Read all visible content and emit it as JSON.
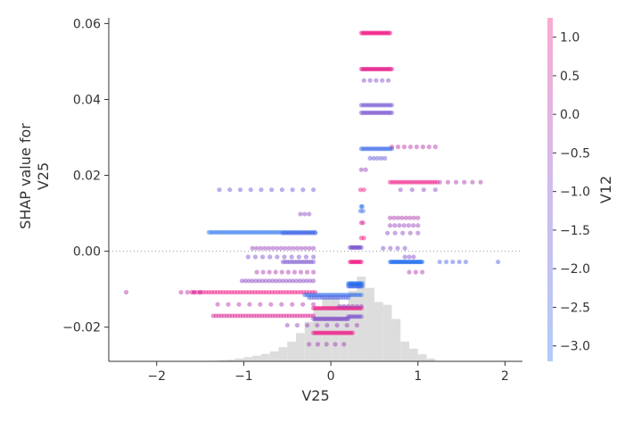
{
  "chart_data": {
    "type": "scatter",
    "title": "",
    "xlabel": "V25",
    "ylabel_lines": [
      "SHAP value for",
      "V25"
    ],
    "xlim": [
      -2.55,
      2.2
    ],
    "ylim": [
      -0.029,
      0.0615
    ],
    "x_ticks": [
      {
        "value": -2,
        "label": "−2"
      },
      {
        "value": -1,
        "label": "−1"
      },
      {
        "value": 0,
        "label": "0"
      },
      {
        "value": 1,
        "label": "1"
      },
      {
        "value": 2,
        "label": "2"
      }
    ],
    "y_ticks": [
      {
        "value": 0.06,
        "label": "0.06"
      },
      {
        "value": 0.04,
        "label": "0.04"
      },
      {
        "value": 0.02,
        "label": "0.02"
      },
      {
        "value": 0.0,
        "label": "0.00"
      },
      {
        "value": -0.02,
        "label": "−0.02"
      }
    ],
    "zero_line": 0.0,
    "histogram": {
      "bin_width": 0.1,
      "bins": [
        [
          -1.4,
          0.004
        ],
        [
          -1.3,
          0.007
        ],
        [
          -1.2,
          0.012
        ],
        [
          -1.1,
          0.02
        ],
        [
          -1.0,
          0.03
        ],
        [
          -0.9,
          0.04
        ],
        [
          -0.8,
          0.052
        ],
        [
          -0.7,
          0.07
        ],
        [
          -0.6,
          0.1
        ],
        [
          -0.5,
          0.14
        ],
        [
          -0.4,
          0.2
        ],
        [
          -0.3,
          0.28
        ],
        [
          -0.2,
          0.38
        ],
        [
          -0.1,
          0.45
        ],
        [
          0.0,
          0.45
        ],
        [
          0.1,
          0.4
        ],
        [
          0.2,
          0.5
        ],
        [
          0.3,
          0.6
        ],
        [
          0.4,
          0.52
        ],
        [
          0.5,
          0.42
        ],
        [
          0.6,
          0.4
        ],
        [
          0.7,
          0.3
        ],
        [
          0.8,
          0.14
        ],
        [
          0.9,
          0.09
        ],
        [
          1.0,
          0.05
        ],
        [
          1.1,
          0.02
        ]
      ]
    },
    "colorbar": {
      "label": "V12",
      "range": [
        -3.2,
        1.25
      ],
      "ticks": [
        {
          "value": 1.0,
          "label": "1.0"
        },
        {
          "value": 0.5,
          "label": "0.5"
        },
        {
          "value": 0.0,
          "label": "0.0"
        },
        {
          "value": -0.5,
          "label": "−0.5"
        },
        {
          "value": -1.0,
          "label": "−1.0"
        },
        {
          "value": -1.5,
          "label": "−1.5"
        },
        {
          "value": -2.0,
          "label": "−2.0"
        },
        {
          "value": -2.5,
          "label": "−2.5"
        },
        {
          "value": -3.0,
          "label": "−3.0"
        }
      ],
      "colors": [
        "#1f6cee",
        "#7b42c8",
        "#f00d7e"
      ]
    },
    "point_groups": [
      {
        "y": 0.0575,
        "x_start": 0.35,
        "x_end": 0.68,
        "n": 22,
        "color": 1.0
      },
      {
        "y": 0.048,
        "x_start": 0.35,
        "x_end": 0.7,
        "n": 24,
        "color": 0.95
      },
      {
        "y": 0.045,
        "x_start": 0.38,
        "x_end": 0.66,
        "n": 5,
        "color": 0.5
      },
      {
        "y": 0.0385,
        "x_start": 0.35,
        "x_end": 0.7,
        "n": 16,
        "color": 0.4
      },
      {
        "y": 0.0365,
        "x_start": 0.35,
        "x_end": 0.7,
        "n": 18,
        "color": 0.45
      },
      {
        "y": 0.027,
        "x_start": 0.35,
        "x_end": 0.7,
        "n": 18,
        "color": 0.1
      },
      {
        "y": 0.0275,
        "x_start": 0.7,
        "x_end": 1.2,
        "n": 8,
        "color": 0.75
      },
      {
        "y": 0.0245,
        "x_start": 0.45,
        "x_end": 0.62,
        "n": 5,
        "color": 0.3
      },
      {
        "y": 0.0215,
        "x_start": 0.35,
        "x_end": 0.4,
        "n": 2,
        "color": 0.6
      },
      {
        "y": 0.0182,
        "x_start": 0.68,
        "x_end": 1.22,
        "n": 22,
        "color": 1.0
      },
      {
        "y": 0.0182,
        "x_start": 1.25,
        "x_end": 1.72,
        "n": 6,
        "color": 0.7
      },
      {
        "y": 0.0162,
        "x_start": -1.28,
        "x_end": -0.2,
        "n": 10,
        "color": 0.35
      },
      {
        "y": 0.0162,
        "x_start": 0.8,
        "x_end": 1.2,
        "n": 4,
        "color": 0.55
      },
      {
        "y": 0.0162,
        "x_start": 0.34,
        "x_end": 0.38,
        "n": 2,
        "color": 1.0
      },
      {
        "y": 0.0118,
        "x_start": 0.35,
        "x_end": 0.36,
        "n": 2,
        "color": 0.0
      },
      {
        "y": 0.0106,
        "x_start": 0.34,
        "x_end": 0.37,
        "n": 2,
        "color": 0.1
      },
      {
        "y": 0.0098,
        "x_start": -0.35,
        "x_end": -0.25,
        "n": 3,
        "color": 0.55
      },
      {
        "y": 0.0088,
        "x_start": 0.68,
        "x_end": 1.0,
        "n": 8,
        "color": 0.7
      },
      {
        "y": 0.0075,
        "x_start": 0.35,
        "x_end": 0.37,
        "n": 2,
        "color": 0.9
      },
      {
        "y": 0.0068,
        "x_start": 0.68,
        "x_end": 1.0,
        "n": 7,
        "color": 0.6
      },
      {
        "y": 0.005,
        "x_start": -1.4,
        "x_end": -0.18,
        "n": 48,
        "color": 0.0
      },
      {
        "y": 0.0048,
        "x_start": -0.55,
        "x_end": -0.18,
        "n": 12,
        "color": 0.2
      },
      {
        "y": 0.0048,
        "x_start": 0.65,
        "x_end": 1.0,
        "n": 5,
        "color": 0.55
      },
      {
        "y": 0.0035,
        "x_start": 0.35,
        "x_end": 0.38,
        "n": 2,
        "color": 1.0
      },
      {
        "y": 0.001,
        "x_start": 0.22,
        "x_end": 0.35,
        "n": 10,
        "color": 0.45
      },
      {
        "y": 0.0008,
        "x_start": -0.9,
        "x_end": -0.2,
        "n": 16,
        "color": 0.6
      },
      {
        "y": 0.0008,
        "x_start": 0.6,
        "x_end": 0.85,
        "n": 4,
        "color": 0.5
      },
      {
        "y": -0.0015,
        "x_start": -0.95,
        "x_end": -0.2,
        "n": 10,
        "color": 0.45
      },
      {
        "y": -0.0015,
        "x_start": 0.85,
        "x_end": 0.95,
        "n": 3,
        "color": 0.5
      },
      {
        "y": -0.0028,
        "x_start": -0.55,
        "x_end": -0.2,
        "n": 14,
        "color": 0.45
      },
      {
        "y": -0.0028,
        "x_start": 0.22,
        "x_end": 0.35,
        "n": 10,
        "color": 1.0
      },
      {
        "y": -0.0028,
        "x_start": 0.68,
        "x_end": 1.05,
        "n": 30,
        "color": 0.0
      },
      {
        "y": -0.0028,
        "x_start": 1.25,
        "x_end": 1.55,
        "n": 5,
        "color": 0.2
      },
      {
        "y": -0.0028,
        "x_start": 1.92,
        "x_end": 1.96,
        "n": 1,
        "color": 0.25
      },
      {
        "y": -0.0055,
        "x_start": -0.85,
        "x_end": -0.2,
        "n": 10,
        "color": 0.7
      },
      {
        "y": -0.0055,
        "x_start": 0.9,
        "x_end": 1.05,
        "n": 3,
        "color": 0.7
      },
      {
        "y": -0.0078,
        "x_start": -1.02,
        "x_end": -0.2,
        "n": 22,
        "color": 0.55
      },
      {
        "y": -0.0085,
        "x_start": 0.2,
        "x_end": 0.36,
        "n": 14,
        "color": 0.0
      },
      {
        "y": -0.0092,
        "x_start": 0.2,
        "x_end": 0.36,
        "n": 12,
        "color": 0.1
      },
      {
        "y": -0.0108,
        "x_start": -1.6,
        "x_end": -0.18,
        "n": 44,
        "color": 1.0
      },
      {
        "y": -0.0108,
        "x_start": -2.35,
        "x_end": -2.3,
        "n": 1,
        "color": 0.7
      },
      {
        "y": -0.0108,
        "x_start": -1.72,
        "x_end": -1.5,
        "n": 4,
        "color": 0.8
      },
      {
        "y": -0.0115,
        "x_start": -0.3,
        "x_end": 0.35,
        "n": 26,
        "color": 0.05
      },
      {
        "y": -0.0122,
        "x_start": -0.25,
        "x_end": 0.2,
        "n": 16,
        "color": 0.2
      },
      {
        "y": -0.014,
        "x_start": -1.3,
        "x_end": -0.2,
        "n": 10,
        "color": 0.7
      },
      {
        "y": -0.015,
        "x_start": -0.2,
        "x_end": 0.35,
        "n": 28,
        "color": 1.0
      },
      {
        "y": -0.0145,
        "x_start": 0.1,
        "x_end": 0.35,
        "n": 6,
        "color": 0.6
      },
      {
        "y": -0.017,
        "x_start": -1.35,
        "x_end": -0.2,
        "n": 38,
        "color": 0.9
      },
      {
        "y": -0.0178,
        "x_start": -0.2,
        "x_end": 0.2,
        "n": 22,
        "color": 0.5
      },
      {
        "y": -0.0172,
        "x_start": 0.2,
        "x_end": 0.35,
        "n": 8,
        "color": 0.45
      },
      {
        "y": -0.0195,
        "x_start": -0.5,
        "x_end": 0.3,
        "n": 8,
        "color": 0.6
      },
      {
        "y": -0.0215,
        "x_start": -0.2,
        "x_end": 0.25,
        "n": 24,
        "color": 1.0
      },
      {
        "y": -0.0245,
        "x_start": -0.25,
        "x_end": 0.15,
        "n": 5,
        "color": 0.65
      }
    ]
  }
}
